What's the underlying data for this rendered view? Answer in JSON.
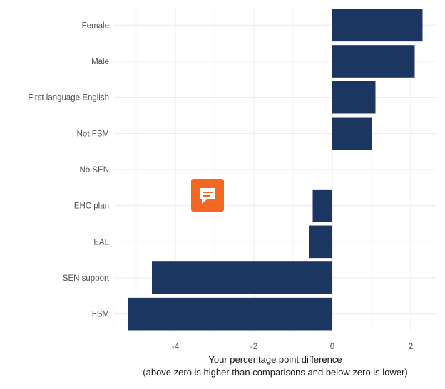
{
  "chart_data": {
    "type": "bar",
    "orientation": "horizontal",
    "categories": [
      "Female",
      "Male",
      "First language English",
      "Not FSM",
      "No SEN",
      "EHC plan",
      "EAL",
      "SEN support",
      "FSM"
    ],
    "values": [
      2.3,
      2.1,
      1.1,
      1.0,
      0.0,
      -0.5,
      -0.6,
      -4.6,
      -5.2
    ],
    "xlim": [
      -5.2,
      2.6
    ],
    "x_ticks": [
      -4,
      -2,
      0,
      2
    ],
    "x_tick_labels": [
      "-4",
      "-2",
      "0",
      "2"
    ],
    "xlabel_line1": "Your percentage point difference",
    "xlabel_line2": "(above zero is higher than comparisons and below zero is lower)",
    "bar_color": "#1b3661",
    "grid": true,
    "legend": "none"
  },
  "comment_button": {
    "icon": "comment-icon",
    "color": "#f26722"
  }
}
